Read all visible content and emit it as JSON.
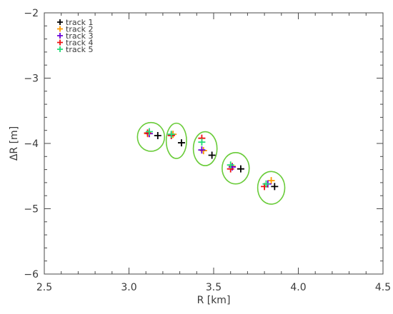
{
  "chart_data": {
    "type": "scatter",
    "title": "",
    "xlabel": "R [km]",
    "ylabel": "ΔR [m]",
    "xlim": [
      2.5,
      4.5
    ],
    "ylim": [
      -6,
      -2
    ],
    "xticks": [
      "2.5",
      "3.0",
      "3.5",
      "4.0",
      "4.5"
    ],
    "yticks": [
      "−2",
      "−3",
      "−4",
      "−5",
      "−6"
    ],
    "grid": false,
    "legend_position": "top-left",
    "marker": "plus",
    "series": [
      {
        "name": "track 1",
        "color": "#000000",
        "x": [
          3.17,
          3.31,
          3.49,
          3.66,
          3.86
        ],
        "y": [
          -3.88,
          -3.99,
          -4.18,
          -4.39,
          -4.66
        ]
      },
      {
        "name": "track 2",
        "color": "#ff9900",
        "x": [
          3.11,
          3.26,
          3.44,
          3.61,
          3.84
        ],
        "y": [
          -3.85,
          -3.86,
          -4.11,
          -4.35,
          -4.57
        ]
      },
      {
        "name": "track 3",
        "color": "#6a00d8",
        "x": [
          3.12,
          3.25,
          3.43,
          3.61,
          3.82
        ],
        "y": [
          -3.85,
          -3.87,
          -4.1,
          -4.36,
          -4.62
        ]
      },
      {
        "name": "track 4",
        "color": "#ee1111",
        "x": [
          3.11,
          3.25,
          3.43,
          3.6,
          3.8
        ],
        "y": [
          -3.84,
          -3.88,
          -3.92,
          -4.39,
          -4.66
        ]
      },
      {
        "name": "track 5",
        "color": "#22dd77",
        "x": [
          3.12,
          3.25,
          3.43,
          3.6,
          3.81
        ],
        "y": [
          -3.82,
          -3.86,
          -3.98,
          -4.33,
          -4.62
        ]
      }
    ],
    "ellipses": {
      "color": "#6acc3a",
      "cx": [
        3.13,
        3.28,
        3.45,
        3.63,
        3.84
      ],
      "cy": [
        -3.9,
        -3.96,
        -4.08,
        -4.38,
        -4.68
      ],
      "rx": [
        0.08,
        0.06,
        0.07,
        0.08,
        0.08
      ],
      "ry": [
        0.22,
        0.27,
        0.26,
        0.24,
        0.25
      ]
    }
  }
}
